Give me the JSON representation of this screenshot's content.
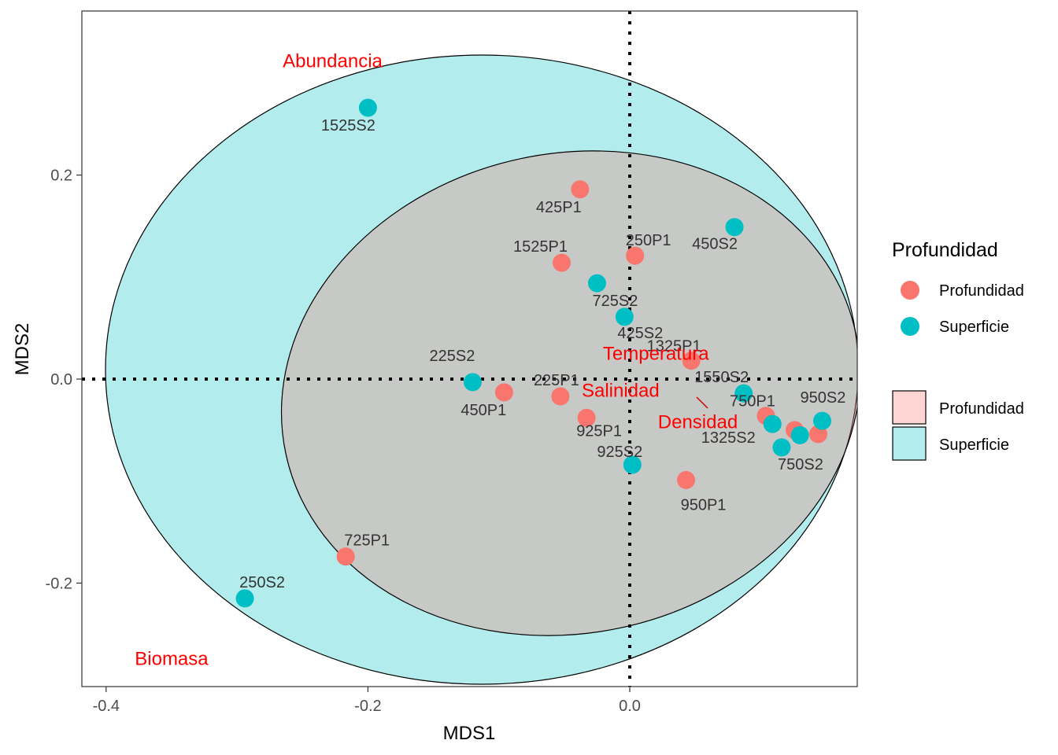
{
  "chart_data": {
    "type": "scatter",
    "xlabel": "MDS1",
    "ylabel": "MDS2",
    "xlim": [
      -0.42,
      0.175
    ],
    "ylim": [
      -0.3,
      0.36
    ],
    "x_ticks": [
      -0.4,
      -0.2,
      0.0
    ],
    "x_tick_labels": [
      "-0.4",
      "-0.2",
      "0.0"
    ],
    "y_ticks": [
      -0.2,
      0.0,
      0.2
    ],
    "y_tick_labels": [
      "-0.2",
      "0.0",
      "0.2"
    ],
    "reference_lines": {
      "x": 0,
      "y": 0,
      "style": "dotted"
    },
    "grid": false,
    "legend_position": "right",
    "colors": {
      "Profundidad": "#f8766d",
      "Superficie": "#00bfc4",
      "env_text": "#ff0000"
    },
    "legend_points": {
      "title": "Profundidad",
      "entries": [
        {
          "name": "Profundidad",
          "color": "#f8766d"
        },
        {
          "name": "Superficie",
          "color": "#00bfc4"
        }
      ]
    },
    "legend_ellipses": {
      "entries": [
        {
          "name": "Profundidad",
          "fill": "#f8766d"
        },
        {
          "name": "Superficie",
          "fill": "#00bfc4"
        }
      ]
    },
    "series": [
      {
        "name": "Profundidad",
        "points": [
          {
            "label": "425P1",
            "x": -0.038,
            "y": 0.186
          },
          {
            "label": "1525P1",
            "x": -0.052,
            "y": 0.114
          },
          {
            "label": "250P1",
            "x": 0.004,
            "y": 0.121
          },
          {
            "label": "1325P1",
            "x": 0.047,
            "y": 0.018
          },
          {
            "label": "450P1",
            "x": -0.096,
            "y": -0.013
          },
          {
            "label": "225P1",
            "x": -0.053,
            "y": -0.017
          },
          {
            "label": "925P1",
            "x": -0.033,
            "y": -0.038
          },
          {
            "label": "750P1",
            "x": 0.104,
            "y": -0.036
          },
          {
            "label": "",
            "x": 0.126,
            "y": -0.05
          },
          {
            "label": "",
            "x": 0.144,
            "y": -0.054
          },
          {
            "label": "950P1",
            "x": 0.043,
            "y": -0.099
          },
          {
            "label": "725P1",
            "x": -0.217,
            "y": -0.174
          }
        ]
      },
      {
        "name": "Superficie",
        "points": [
          {
            "label": "1525S2",
            "x": -0.2,
            "y": 0.266
          },
          {
            "label": "450S2",
            "x": 0.08,
            "y": 0.149
          },
          {
            "label": "725S2",
            "x": -0.025,
            "y": 0.094
          },
          {
            "label": "425S2",
            "x": -0.004,
            "y": 0.061
          },
          {
            "label": "225S2",
            "x": -0.12,
            "y": -0.003
          },
          {
            "label": "1550S2",
            "x": 0.087,
            "y": -0.014
          },
          {
            "label": "950S2",
            "x": 0.147,
            "y": -0.041
          },
          {
            "label": "1325S2",
            "x": 0.109,
            "y": -0.044
          },
          {
            "label": "",
            "x": 0.13,
            "y": -0.055
          },
          {
            "label": "750S2",
            "x": 0.116,
            "y": -0.067
          },
          {
            "label": "925S2",
            "x": 0.002,
            "y": -0.084
          },
          {
            "label": "250S2",
            "x": -0.294,
            "y": -0.215
          }
        ]
      }
    ],
    "env_vectors": [
      {
        "label": "Abundancia",
        "x": -0.227,
        "y": 0.312
      },
      {
        "label": "Biomasa",
        "x": -0.35,
        "y": -0.274
      },
      {
        "label": "Temperatura",
        "x": 0.02,
        "y": 0.025
      },
      {
        "label": "Salinidad",
        "x": -0.007,
        "y": -0.011
      },
      {
        "label": "Densidad",
        "x": 0.052,
        "y": -0.042
      }
    ]
  }
}
